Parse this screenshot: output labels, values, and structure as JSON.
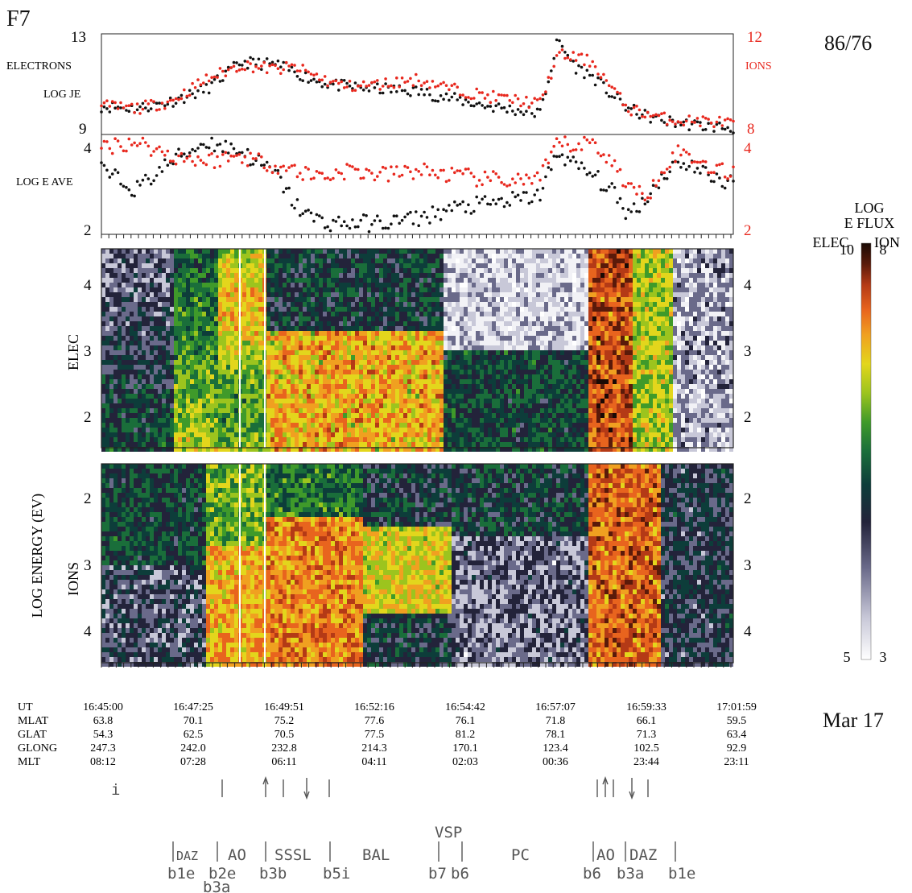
{
  "header": {
    "satellite": "F7",
    "orbit": "86/76",
    "date": "Mar 17"
  },
  "colors": {
    "ion_red": "#e8281e",
    "electron_black": "#111111",
    "colorbar": [
      "#ffffff",
      "#c8c8d8",
      "#6a6a8a",
      "#23233a",
      "#0d3d3a",
      "#1a6e3a",
      "#3f9a2a",
      "#9cc41e",
      "#e3d61c",
      "#f0a020",
      "#e8641e",
      "#b43a16",
      "#5a1a0a",
      "#1a0a05"
    ]
  },
  "panel_labels": {
    "electrons": "ELECTRONS",
    "log_je": "LOG JE",
    "ions": "IONS",
    "log_e_ave": "LOG E AVE",
    "log_energy": "LOG ENERGY (EV)",
    "elec": "ELEC",
    "ions_spec": "IONS"
  },
  "colorbar": {
    "title1": "LOG",
    "title2": "E FLUX",
    "elec_label": "ELEC",
    "ion_label": "ION",
    "elec_max": "10",
    "ion_max": "8",
    "elec_min": "5",
    "ion_min": "3"
  },
  "table": {
    "row_labels": [
      "UT",
      "MLAT",
      "GLAT",
      "GLONG",
      "MLT"
    ],
    "columns": [
      [
        "16:45:00",
        "63.8",
        "54.3",
        "247.3",
        "08:12"
      ],
      [
        "16:47:25",
        "70.1",
        "62.5",
        "242.0",
        "07:28"
      ],
      [
        "16:49:51",
        "75.2",
        "70.5",
        "232.8",
        "06:11"
      ],
      [
        "16:52:16",
        "77.6",
        "77.5",
        "214.3",
        "04:11"
      ],
      [
        "16:54:42",
        "76.1",
        "81.2",
        "170.1",
        "02:03"
      ],
      [
        "16:57:07",
        "71.8",
        "78.1",
        "123.4",
        "00:36"
      ],
      [
        "16:59:33",
        "66.1",
        "71.3",
        "102.5",
        "23:44"
      ],
      [
        "17:01:59",
        "59.5",
        "63.4",
        "92.9",
        "23:11"
      ]
    ]
  },
  "boundaries": {
    "region_labels": [
      "DAZ",
      "AO",
      "SSSL",
      "BAL",
      "VSP",
      "PC",
      "AO",
      "DAZ"
    ],
    "bottom_labels": [
      "b1e",
      "b2e",
      "b3a",
      "b3b",
      "b5i",
      "b7",
      "b6",
      "b6",
      "b3a",
      "b1e"
    ]
  },
  "chart_data": [
    {
      "type": "scatter",
      "title": "",
      "x_unit": "UT",
      "x_range": [
        "16:45:00",
        "17:03:00"
      ],
      "left_axis": {
        "label": "LOG JE",
        "ylim": [
          9,
          13
        ],
        "ticks": [
          "13",
          "9"
        ]
      },
      "right_axis": {
        "label": "IONS",
        "ylim": [
          8,
          12
        ],
        "ticks": [
          "12",
          "8"
        ]
      },
      "series": [
        {
          "name": "ELECTRONS",
          "axis": "left",
          "x": [
            0,
            1,
            2,
            3,
            4,
            5,
            5.5,
            6,
            6.5,
            7,
            8,
            9,
            10,
            11,
            12,
            12.5,
            13,
            13.5,
            14,
            14.5,
            15,
            15.5,
            16,
            16.5,
            17,
            18
          ],
          "y": [
            10.1,
            10.0,
            10.3,
            10.8,
            11.9,
            11.8,
            11.5,
            11.2,
            11.0,
            10.9,
            10.8,
            10.7,
            10.4,
            10.1,
            9.9,
            9.8,
            12.8,
            11.7,
            11.3,
            10.6,
            10.0,
            9.7,
            9.5,
            9.4,
            9.3,
            9.2
          ]
        },
        {
          "name": "IONS",
          "axis": "right",
          "x": [
            0,
            1,
            2,
            3,
            4,
            5,
            5.5,
            6,
            6.5,
            7,
            8,
            9,
            10,
            11,
            12,
            12.5,
            13,
            13.5,
            14,
            14.5,
            15,
            15.5,
            16,
            16.5,
            17,
            18
          ],
          "y": [
            9.1,
            9.0,
            9.3,
            10.2,
            10.8,
            10.6,
            10.7,
            10.4,
            10.1,
            9.9,
            10.0,
            10.2,
            9.8,
            9.5,
            9.3,
            9.2,
            11.2,
            11.1,
            10.9,
            9.9,
            9.0,
            8.8,
            8.6,
            8.5,
            8.5,
            8.4
          ]
        }
      ]
    },
    {
      "type": "scatter",
      "title": "",
      "x_unit": "UT",
      "x_range": [
        "16:45:00",
        "17:03:00"
      ],
      "left_axis": {
        "label": "LOG E AVE",
        "ylim": [
          2,
          4
        ],
        "ticks": [
          "4",
          "2"
        ]
      },
      "right_axis": {
        "label": "",
        "ylim": [
          2,
          4
        ],
        "ticks": [
          "4",
          "2"
        ]
      },
      "series": [
        {
          "name": "ELEC",
          "axis": "left",
          "x": [
            0,
            1,
            2,
            3,
            4,
            5,
            5.5,
            6,
            6.5,
            7,
            8,
            9,
            10,
            11,
            12,
            12.5,
            13,
            13.5,
            14,
            14.5,
            15,
            15.5,
            16,
            16.5,
            17,
            18
          ],
          "y": [
            3.3,
            2.9,
            3.5,
            3.9,
            3.7,
            3.2,
            2.6,
            2.3,
            2.2,
            2.2,
            2.2,
            2.3,
            2.5,
            2.6,
            2.7,
            2.8,
            3.7,
            3.4,
            3.2,
            2.9,
            2.4,
            2.7,
            3.2,
            3.5,
            3.3,
            3.0
          ]
        },
        {
          "name": "ION",
          "axis": "right",
          "x": [
            0,
            1,
            2,
            3,
            4,
            5,
            5.5,
            6,
            6.5,
            7,
            8,
            9,
            10,
            11,
            12,
            12.5,
            13,
            13.5,
            14,
            14.5,
            15,
            15.5,
            16,
            16.5,
            17,
            18
          ],
          "y": [
            3.8,
            3.9,
            3.6,
            3.5,
            3.6,
            3.4,
            3.3,
            3.2,
            3.2,
            3.3,
            3.2,
            3.3,
            3.2,
            3.1,
            3.1,
            3.1,
            3.9,
            3.8,
            3.9,
            3.5,
            3.0,
            2.7,
            3.4,
            3.7,
            3.5,
            3.2
          ]
        }
      ]
    },
    {
      "type": "heatmap",
      "title": "",
      "name": "ELEC",
      "x_unit": "UT",
      "x_range": [
        "16:45:00",
        "17:03:00"
      ],
      "ylabel": "LOG ENERGY (EV)",
      "yticks": [
        "4",
        "3",
        "2"
      ]
    },
    {
      "type": "heatmap",
      "title": "",
      "name": "IONS",
      "x_unit": "UT",
      "x_range": [
        "16:45:00",
        "17:03:00"
      ],
      "ylabel": "LOG ENERGY (EV)",
      "yticks": [
        "2",
        "3",
        "4"
      ]
    }
  ]
}
